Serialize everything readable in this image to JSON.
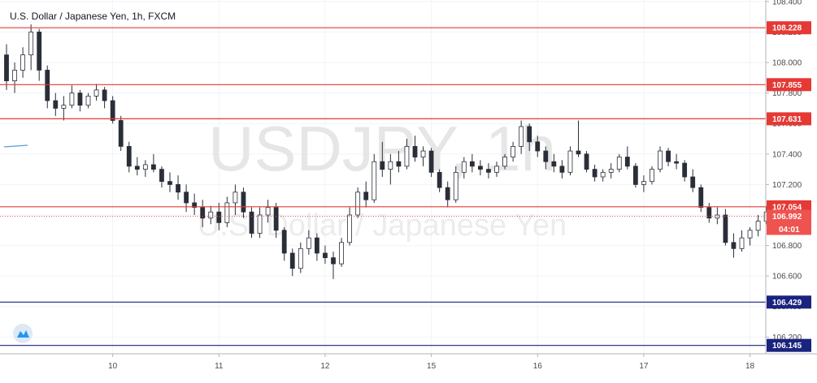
{
  "chart_data": {
    "type": "candlestick",
    "title": "U.S. Dollar / Japanese Yen, 1h, FXCM",
    "watermark": {
      "symbol": "USDJPY, 1h",
      "name": "U.S. Dollar / Japanese Yen"
    },
    "y_ticks": [
      "106.200",
      "106.400",
      "106.600",
      "106.800",
      "107.000",
      "107.200",
      "107.400",
      "107.600",
      "107.800",
      "108.000",
      "108.200",
      "108.400"
    ],
    "ylim": [
      106.09,
      108.41
    ],
    "x_ticks": [
      "10",
      "11",
      "12",
      "15",
      "16",
      "17",
      "18"
    ],
    "x_tick_index": [
      13,
      26,
      39,
      52,
      65,
      78,
      91
    ],
    "grid": true,
    "levels": [
      {
        "value": 108.228,
        "label": "108.228",
        "color": "#e53935",
        "style": "solid"
      },
      {
        "value": 107.855,
        "label": "107.855",
        "color": "#e53935",
        "style": "solid"
      },
      {
        "value": 107.631,
        "label": "107.631",
        "color": "#e53935",
        "style": "solid"
      },
      {
        "value": 107.054,
        "label": "107.054",
        "color": "#e53935",
        "style": "solid"
      },
      {
        "value": 106.429,
        "label": "106.429",
        "color": "#1a237e",
        "style": "solid"
      },
      {
        "value": 106.145,
        "label": "106.145",
        "color": "#1a237e",
        "style": "solid"
      }
    ],
    "current_price": {
      "value": 106.992,
      "label": "106.992",
      "countdown": "04:01",
      "color": "#ef5350"
    },
    "candles": [
      [
        108.05,
        108.12,
        107.82,
        107.88
      ],
      [
        107.88,
        108.0,
        107.8,
        107.95
      ],
      [
        107.95,
        108.1,
        107.9,
        108.05
      ],
      [
        108.05,
        108.25,
        107.95,
        108.2
      ],
      [
        108.2,
        108.22,
        107.88,
        107.95
      ],
      [
        107.95,
        107.98,
        107.7,
        107.75
      ],
      [
        107.75,
        107.8,
        107.65,
        107.7
      ],
      [
        107.7,
        107.78,
        107.62,
        107.72
      ],
      [
        107.72,
        107.85,
        107.7,
        107.8
      ],
      [
        107.8,
        107.82,
        107.68,
        107.72
      ],
      [
        107.72,
        107.8,
        107.7,
        107.78
      ],
      [
        107.78,
        107.86,
        107.75,
        107.82
      ],
      [
        107.82,
        107.84,
        107.7,
        107.75
      ],
      [
        107.75,
        107.78,
        107.6,
        107.62
      ],
      [
        107.62,
        107.65,
        107.42,
        107.45
      ],
      [
        107.45,
        107.48,
        107.28,
        107.32
      ],
      [
        107.32,
        107.38,
        107.26,
        107.3
      ],
      [
        107.3,
        107.36,
        107.25,
        107.33
      ],
      [
        107.33,
        107.4,
        107.28,
        107.3
      ],
      [
        107.3,
        107.32,
        107.18,
        107.22
      ],
      [
        107.22,
        107.28,
        107.15,
        107.2
      ],
      [
        107.2,
        107.26,
        107.1,
        107.15
      ],
      [
        107.15,
        107.2,
        107.02,
        107.08
      ],
      [
        107.08,
        107.14,
        107.0,
        107.05
      ],
      [
        107.05,
        107.1,
        106.92,
        106.98
      ],
      [
        106.98,
        107.06,
        106.94,
        107.02
      ],
      [
        107.02,
        107.08,
        106.9,
        106.95
      ],
      [
        106.95,
        107.12,
        106.92,
        107.08
      ],
      [
        107.08,
        107.2,
        107.0,
        107.15
      ],
      [
        107.15,
        107.18,
        106.98,
        107.02
      ],
      [
        107.02,
        107.05,
        106.85,
        106.88
      ],
      [
        106.88,
        107.05,
        106.85,
        107.0
      ],
      [
        107.0,
        107.1,
        106.95,
        107.05
      ],
      [
        107.05,
        107.08,
        106.85,
        106.9
      ],
      [
        106.9,
        106.92,
        106.7,
        106.75
      ],
      [
        106.75,
        106.78,
        106.6,
        106.65
      ],
      [
        106.65,
        106.82,
        106.62,
        106.78
      ],
      [
        106.78,
        106.9,
        106.74,
        106.85
      ],
      [
        106.85,
        106.88,
        106.7,
        106.75
      ],
      [
        106.75,
        106.8,
        106.68,
        106.72
      ],
      [
        106.72,
        106.76,
        106.58,
        106.68
      ],
      [
        106.68,
        106.85,
        106.66,
        106.82
      ],
      [
        106.82,
        107.05,
        106.8,
        107.0
      ],
      [
        107.0,
        107.18,
        106.98,
        107.15
      ],
      [
        107.15,
        107.22,
        107.05,
        107.1
      ],
      [
        107.1,
        107.4,
        107.08,
        107.35
      ],
      [
        107.35,
        107.48,
        107.25,
        107.3
      ],
      [
        107.3,
        107.4,
        107.2,
        107.35
      ],
      [
        107.35,
        107.42,
        107.28,
        107.32
      ],
      [
        107.32,
        107.5,
        107.3,
        107.45
      ],
      [
        107.45,
        107.52,
        107.35,
        107.38
      ],
      [
        107.38,
        107.45,
        107.32,
        107.42
      ],
      [
        107.42,
        107.44,
        107.25,
        107.28
      ],
      [
        107.28,
        107.3,
        107.15,
        107.18
      ],
      [
        107.18,
        107.22,
        107.05,
        107.1
      ],
      [
        107.1,
        107.32,
        107.08,
        107.28
      ],
      [
        107.28,
        107.38,
        107.24,
        107.35
      ],
      [
        107.35,
        107.4,
        107.28,
        107.32
      ],
      [
        107.32,
        107.36,
        107.26,
        107.3
      ],
      [
        107.3,
        107.34,
        107.24,
        107.28
      ],
      [
        107.28,
        107.35,
        107.25,
        107.32
      ],
      [
        107.32,
        107.4,
        107.3,
        107.38
      ],
      [
        107.38,
        107.48,
        107.35,
        107.45
      ],
      [
        107.45,
        107.62,
        107.4,
        107.58
      ],
      [
        107.58,
        107.6,
        107.42,
        107.48
      ],
      [
        107.48,
        107.52,
        107.38,
        107.42
      ],
      [
        107.42,
        107.45,
        107.3,
        107.35
      ],
      [
        107.35,
        107.4,
        107.28,
        107.32
      ],
      [
        107.32,
        107.36,
        107.24,
        107.28
      ],
      [
        107.28,
        107.45,
        107.26,
        107.42
      ],
      [
        107.42,
        107.62,
        107.38,
        107.4
      ],
      [
        107.4,
        107.42,
        107.28,
        107.3
      ],
      [
        107.3,
        107.33,
        107.22,
        107.25
      ],
      [
        107.25,
        107.3,
        107.22,
        107.28
      ],
      [
        107.28,
        107.34,
        107.24,
        107.3
      ],
      [
        107.3,
        107.4,
        107.28,
        107.38
      ],
      [
        107.38,
        107.45,
        107.3,
        107.32
      ],
      [
        107.32,
        107.34,
        107.18,
        107.2
      ],
      [
        107.2,
        107.26,
        107.15,
        107.22
      ],
      [
        107.22,
        107.32,
        107.2,
        107.3
      ],
      [
        107.3,
        107.45,
        107.28,
        107.42
      ],
      [
        107.42,
        107.44,
        107.32,
        107.35
      ],
      [
        107.35,
        107.4,
        107.3,
        107.34
      ],
      [
        107.34,
        107.36,
        107.22,
        107.25
      ],
      [
        107.25,
        107.3,
        107.15,
        107.18
      ],
      [
        107.18,
        107.2,
        107.02,
        107.05
      ],
      [
        107.05,
        107.08,
        106.95,
        106.98
      ],
      [
        106.98,
        107.05,
        106.94,
        107.0
      ],
      [
        107.0,
        107.04,
        106.8,
        106.82
      ],
      [
        106.82,
        106.88,
        106.72,
        106.78
      ],
      [
        106.78,
        106.9,
        106.76,
        106.85
      ],
      [
        106.85,
        106.92,
        106.8,
        106.9
      ],
      [
        106.9,
        107.0,
        106.86,
        106.96
      ],
      [
        106.96,
        107.06,
        106.94,
        107.02
      ],
      [
        107.02,
        107.06,
        106.97,
        106.99
      ]
    ]
  }
}
